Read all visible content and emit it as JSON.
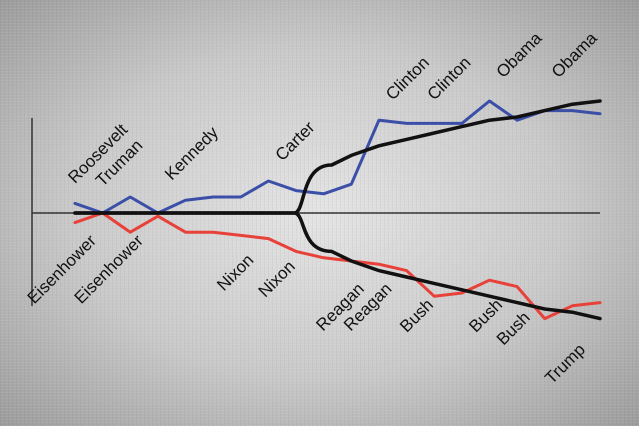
{
  "chart_data": {
    "type": "line",
    "title": "",
    "xlabel": "",
    "ylabel": "",
    "x": [
      0,
      1,
      2,
      3,
      4,
      5,
      6,
      7,
      8,
      9,
      10,
      11,
      12,
      13,
      14,
      15,
      16,
      17,
      18,
      19
    ],
    "xlim": [
      0,
      19
    ],
    "ylim": [
      -10,
      10
    ],
    "grid": false,
    "legend": "none",
    "series": [
      {
        "name": "",
        "color": "#3b4fa8",
        "values": [
          0.3,
          0.0,
          0.5,
          0.0,
          0.4,
          0.5,
          0.5,
          1.0,
          0.7,
          0.6,
          0.9,
          2.9,
          2.8,
          2.8,
          2.8,
          3.5,
          2.9,
          3.2,
          3.2,
          3.1
        ]
      },
      {
        "name": "",
        "color": "#e8413a",
        "values": [
          -0.3,
          0.0,
          -0.6,
          -0.1,
          -0.6,
          -0.6,
          -0.7,
          -0.8,
          -1.2,
          -1.4,
          -1.5,
          -1.6,
          -1.8,
          -2.6,
          -2.5,
          -2.1,
          -2.3,
          -3.3,
          -2.9,
          -2.8
        ]
      },
      {
        "name": "",
        "color": "#111111",
        "values": [
          0.0,
          0.0,
          0.0,
          0.0,
          0.0,
          0.0,
          0.0,
          0.0,
          0.0,
          1.5,
          1.8,
          2.1,
          2.3,
          2.5,
          2.7,
          2.9,
          3.0,
          3.2,
          3.4,
          3.5
        ]
      },
      {
        "name": "",
        "color": "#111111",
        "values": [
          0.0,
          0.0,
          0.0,
          0.0,
          0.0,
          0.0,
          0.0,
          0.0,
          0.0,
          -1.2,
          -1.5,
          -1.8,
          -2.0,
          -2.2,
          -2.4,
          -2.6,
          -2.8,
          -3.0,
          -3.1,
          -3.3
        ]
      }
    ],
    "annotations": [
      {
        "text": "Roosevelt",
        "x": 0.0,
        "y": 0.9
      },
      {
        "text": "Truman",
        "x": 1.0,
        "y": 0.8
      },
      {
        "text": "Kennedy",
        "x": 3.5,
        "y": 1.0
      },
      {
        "text": "Carter",
        "x": 7.5,
        "y": 1.6
      },
      {
        "text": "Clinton",
        "x": 11.5,
        "y": 3.5
      },
      {
        "text": "Clinton",
        "x": 13.0,
        "y": 3.5
      },
      {
        "text": "Obama",
        "x": 15.5,
        "y": 4.2
      },
      {
        "text": "Obama",
        "x": 17.5,
        "y": 4.2
      },
      {
        "text": "Eisenhower",
        "x": 0.8,
        "y": -0.9
      },
      {
        "text": "Eisenhower",
        "x": 2.5,
        "y": -0.9
      },
      {
        "text": "Nixon",
        "x": 6.5,
        "y": -1.5
      },
      {
        "text": "Nixon",
        "x": 8.0,
        "y": -1.7
      },
      {
        "text": "Reagan",
        "x": 10.5,
        "y": -2.4
      },
      {
        "text": "Reagan",
        "x": 11.5,
        "y": -2.4
      },
      {
        "text": "Bush",
        "x": 13.0,
        "y": -2.9
      },
      {
        "text": "Bush",
        "x": 15.5,
        "y": -2.9
      },
      {
        "text": "Bush",
        "x": 16.5,
        "y": -3.3
      },
      {
        "text": "Trump",
        "x": 18.5,
        "y": -4.3
      }
    ]
  }
}
